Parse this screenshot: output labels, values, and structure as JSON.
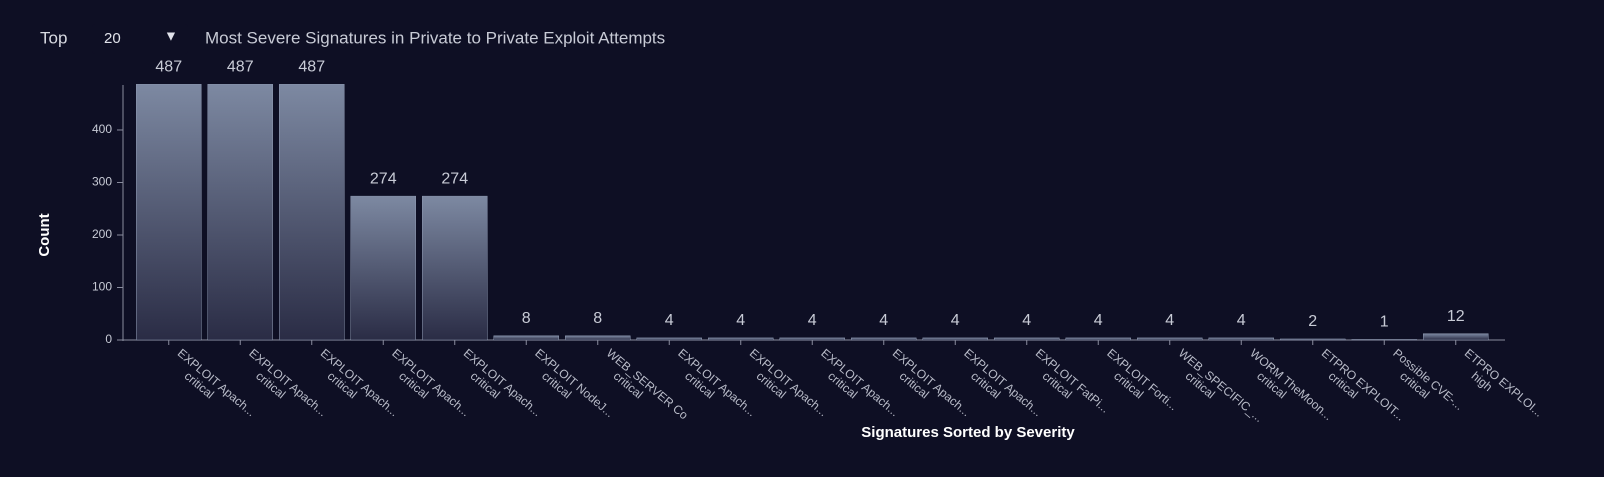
{
  "controls": {
    "label": "Top",
    "value": "20"
  },
  "chart_data": {
    "type": "bar",
    "title": "Most Severe Signatures in Private to Private Exploit Attempts",
    "x_label": "Signatures Sorted by Severity",
    "y_label": "Count",
    "categories": [
      "EXPLOIT Apach...",
      "EXPLOIT Apach...",
      "EXPLOIT Apach...",
      "EXPLOIT Apach...",
      "EXPLOIT Apach...",
      "EXPLOIT NodeJ...",
      "WEB_SERVER Co",
      "EXPLOIT Apach...",
      "EXPLOIT Apach...",
      "EXPLOIT Apach...",
      "EXPLOIT Apach...",
      "EXPLOIT Apach...",
      "EXPLOIT FatPi...",
      "EXPLOIT Forti...",
      "WEB_SPECIFIC_...",
      "WORM TheMoon...",
      "ETPRO EXPLOIT...",
      "Possible CVE-...",
      "ETPRO EXPLOI..."
    ],
    "severity": [
      "critical",
      "critical",
      "critical",
      "critical",
      "critical",
      "critical",
      "critical",
      "critical",
      "critical",
      "critical",
      "critical",
      "critical",
      "critical",
      "critical",
      "critical",
      "critical",
      "critical",
      "critical",
      "high"
    ],
    "values": [
      487,
      487,
      487,
      274,
      274,
      8,
      8,
      4,
      4,
      4,
      4,
      4,
      4,
      4,
      4,
      4,
      2,
      1,
      12
    ],
    "ylim": [
      0,
      487
    ],
    "yticks": [
      0,
      100,
      200,
      300,
      400
    ]
  }
}
